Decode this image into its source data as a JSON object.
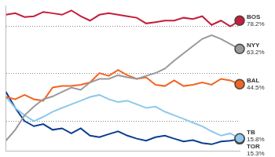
{
  "chart_data": {
    "type": "line",
    "categories": [
      null,
      null,
      null,
      null,
      null,
      null,
      null,
      null,
      null,
      null,
      null,
      null,
      null,
      null,
      null,
      null,
      null,
      null,
      null,
      null,
      null,
      null,
      null,
      null,
      null,
      null
    ],
    "series": [
      {
        "name": "BOS",
        "color": "#c41e3a",
        "values": [
          81.3,
          82.1,
          80.1,
          80.5,
          82.8,
          82.1,
          81.3,
          83.6,
          80.5,
          78.2,
          81.3,
          82.1,
          81.3,
          80.5,
          79.7,
          76.7,
          77.4,
          78.2,
          78.2,
          79.7,
          79.0,
          80.5,
          75.9,
          78.2,
          75.1,
          78.2
        ],
        "value_labels": [
          null,
          null,
          null,
          null,
          null,
          null,
          null,
          null,
          null,
          null,
          null,
          null,
          null,
          null,
          null,
          null,
          null,
          null,
          null,
          null,
          null,
          null,
          null,
          null,
          null,
          "78.2%"
        ]
      },
      {
        "name": "NYY",
        "color": "#9a9a9a",
        "values": [
          14.5,
          20.3,
          28.0,
          32.6,
          36.5,
          38.0,
          40.4,
          42.7,
          41.5,
          45.4,
          47.3,
          47.3,
          49.2,
          48.1,
          47.3,
          48.9,
          50.4,
          52.7,
          57.0,
          60.8,
          64.7,
          68.5,
          70.5,
          68.5,
          65.8,
          63.2
        ],
        "value_labels": [
          null,
          null,
          null,
          null,
          null,
          null,
          null,
          null,
          null,
          null,
          null,
          null,
          null,
          null,
          null,
          null,
          null,
          null,
          null,
          null,
          null,
          null,
          null,
          null,
          null,
          "63.2%"
        ]
      },
      {
        "name": "BAL",
        "color": "#f26522",
        "values": [
          37.7,
          36.5,
          38.8,
          36.5,
          35.7,
          42.7,
          43.5,
          43.5,
          44.2,
          45.4,
          50.4,
          48.9,
          52.0,
          49.2,
          47.3,
          48.1,
          44.2,
          43.5,
          46.5,
          43.5,
          44.2,
          45.4,
          44.2,
          47.3,
          46.5,
          44.5
        ],
        "value_labels": [
          null,
          null,
          null,
          null,
          null,
          null,
          null,
          null,
          null,
          null,
          null,
          null,
          null,
          null,
          null,
          null,
          null,
          null,
          null,
          null,
          null,
          null,
          null,
          null,
          null,
          "44.5%"
        ]
      },
      {
        "name": "TB",
        "color": "#8fc8ea",
        "values": [
          37.7,
          31.9,
          28.0,
          24.9,
          27.2,
          29.9,
          31.9,
          33.8,
          35.7,
          37.7,
          38.8,
          36.5,
          35.0,
          35.7,
          33.8,
          31.9,
          32.6,
          29.9,
          28.0,
          26.1,
          24.1,
          22.2,
          19.5,
          17.2,
          18.4,
          15.8
        ],
        "value_labels": [
          null,
          null,
          null,
          null,
          null,
          null,
          null,
          null,
          null,
          null,
          null,
          null,
          null,
          null,
          null,
          null,
          null,
          null,
          null,
          null,
          null,
          null,
          null,
          null,
          null,
          "15.8%"
        ]
      },
      {
        "name": "TOR",
        "color": "#0b3d91",
        "values": [
          40.4,
          31.9,
          24.9,
          22.2,
          23.3,
          20.3,
          21.1,
          18.4,
          21.1,
          17.2,
          16.4,
          18.0,
          19.5,
          17.2,
          15.6,
          14.5,
          16.4,
          17.2,
          15.6,
          14.1,
          14.8,
          13.3,
          12.6,
          14.1,
          14.5,
          15.3
        ],
        "value_labels": [
          null,
          null,
          null,
          null,
          null,
          null,
          null,
          null,
          null,
          null,
          null,
          null,
          null,
          null,
          null,
          null,
          null,
          null,
          null,
          null,
          null,
          null,
          null,
          null,
          null,
          "15.3%"
        ]
      }
    ],
    "ylim": [
      9,
      86
    ],
    "yticks": [
      25,
      50,
      75
    ],
    "grid": true,
    "tick_labels": false,
    "data_labels": true
  }
}
